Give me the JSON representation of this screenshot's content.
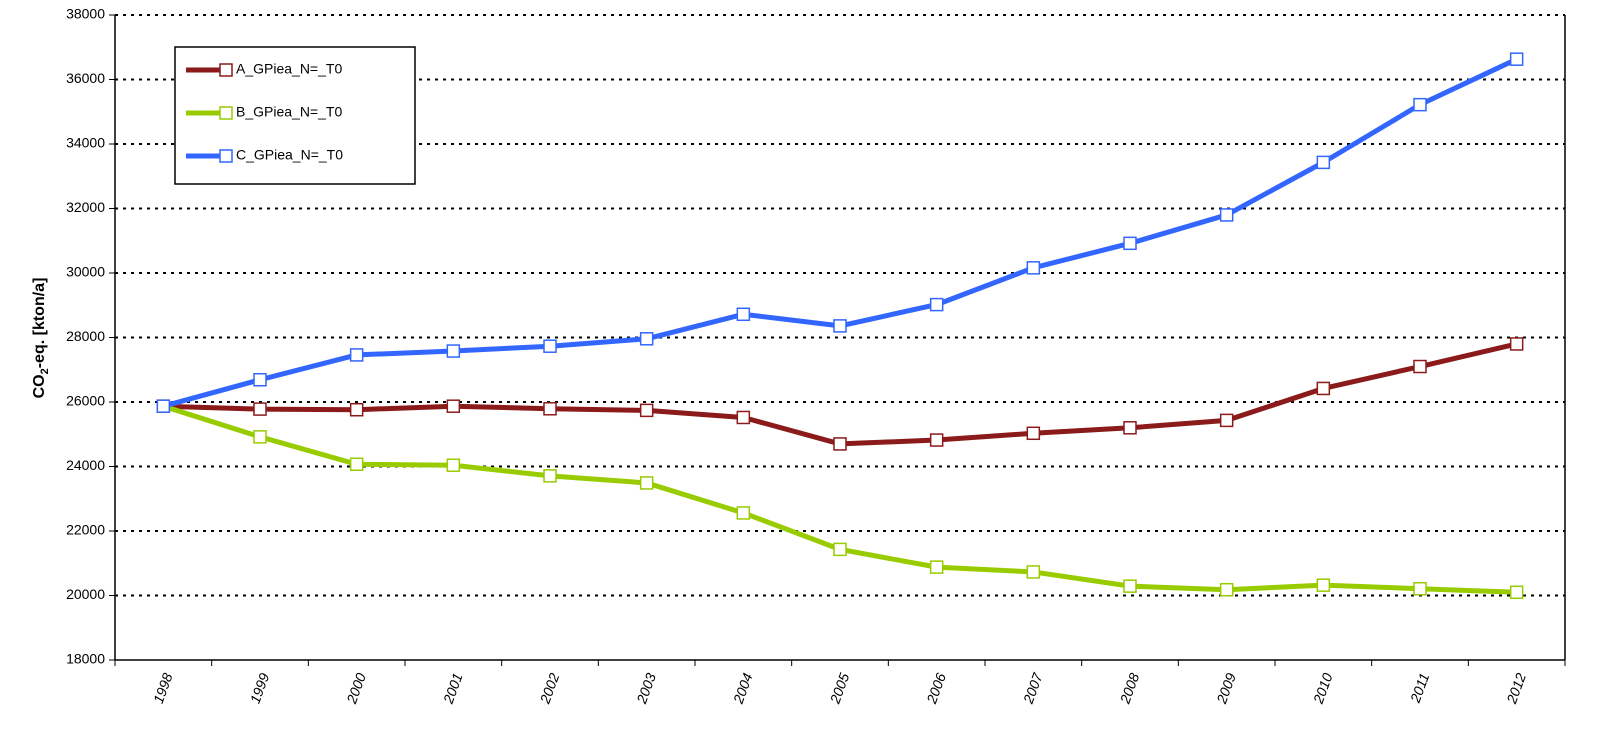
{
  "chart_data": {
    "type": "line",
    "y_label": {
      "text": "CO",
      "subscript": "2",
      "rest": "-eq.  [kton/a]"
    },
    "categories": [
      "1998",
      "1999",
      "2000",
      "2001",
      "2002",
      "2003",
      "2004",
      "2005",
      "2006",
      "2007",
      "2008",
      "2009",
      "2010",
      "2011",
      "2012"
    ],
    "series": [
      {
        "name": "A_GPiea_N=_T0",
        "color": "#8b1a1a",
        "values": [
          25870,
          25780,
          25760,
          25870,
          25790,
          25740,
          25520,
          24700,
          24820,
          25030,
          25200,
          25430,
          26420,
          27100,
          27800
        ]
      },
      {
        "name": "B_GPiea_N=_T0",
        "color": "#99cc00",
        "values": [
          25870,
          24920,
          24070,
          24040,
          23710,
          23490,
          22560,
          21430,
          20880,
          20730,
          20290,
          20180,
          20320,
          20210,
          20100
        ]
      },
      {
        "name": "C_GPiea_N=_T0",
        "color": "#3366ff",
        "values": [
          25870,
          26690,
          27460,
          27580,
          27730,
          27960,
          28720,
          28360,
          29020,
          30160,
          30920,
          31800,
          33430,
          35220,
          36630
        ]
      }
    ],
    "ylim": [
      18000,
      38000
    ],
    "yticks": [
      18000,
      20000,
      22000,
      24000,
      26000,
      28000,
      30000,
      32000,
      34000,
      36000,
      38000
    ],
    "grid": true,
    "legend": "upper left"
  }
}
